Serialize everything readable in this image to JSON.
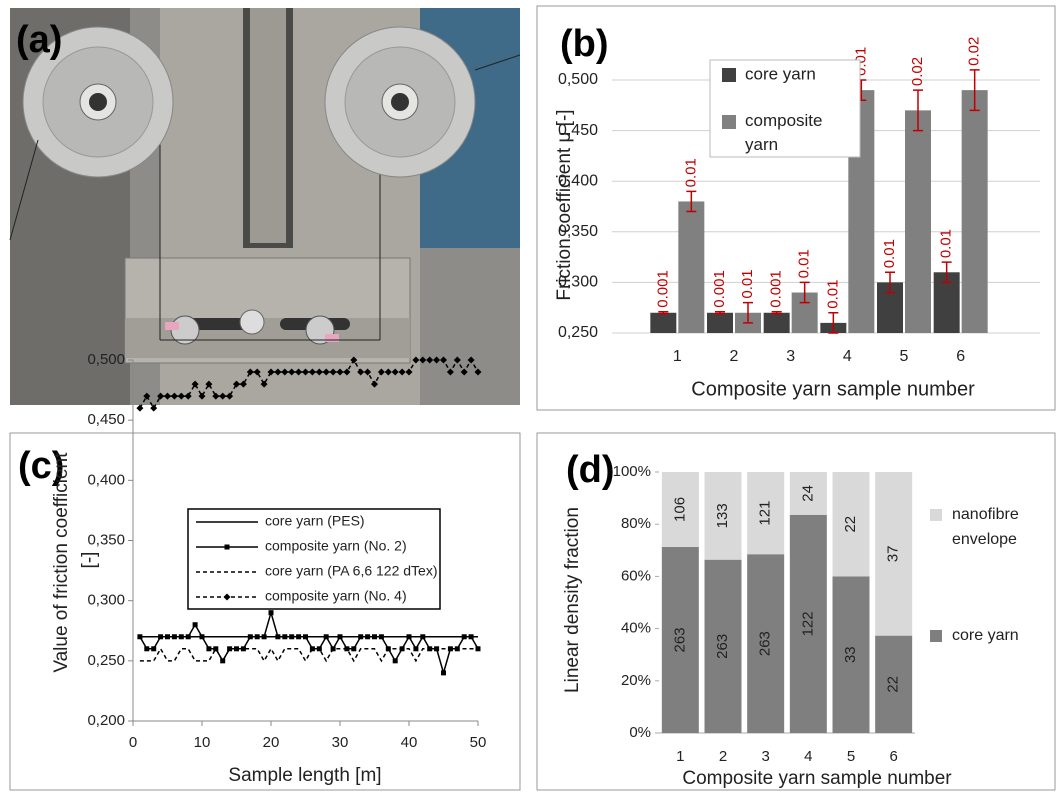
{
  "chart_data": [
    {
      "type": "image",
      "panel_label": "(a)"
    },
    {
      "type": "bar",
      "panel_label": "(b)",
      "y_label": "Friction coefficient μ [-]",
      "x_label": "Composite yarn sample number",
      "categories": [
        "1",
        "2",
        "3",
        "4",
        "5",
        "6"
      ],
      "series": [
        {
          "name": "core yarn",
          "color": "#404040",
          "values": [
            0.27,
            0.27,
            0.27,
            0.26,
            0.3,
            0.31
          ],
          "errors": [
            0.001,
            0.001,
            0.001,
            0.01,
            0.01,
            0.01
          ]
        },
        {
          "name": "composite yarn",
          "color": "#808080",
          "values": [
            0.38,
            0.27,
            0.29,
            0.49,
            0.47,
            0.49
          ],
          "errors": [
            0.01,
            0.01,
            0.01,
            0.01,
            0.02,
            0.02
          ]
        }
      ],
      "error_color": "#c00000",
      "ylim": [
        0.25,
        0.5
      ],
      "yticks": [
        {
          "value": 0.25,
          "label": "0,250"
        },
        {
          "value": 0.3,
          "label": "0,300"
        },
        {
          "value": 0.35,
          "label": "0,350"
        },
        {
          "value": 0.4,
          "label": "0,400"
        },
        {
          "value": 0.45,
          "label": "0,450"
        },
        {
          "value": 0.5,
          "label": "0,500"
        }
      ],
      "grid": true
    },
    {
      "type": "line",
      "panel_label": "(c)",
      "y_label": "Value of friction coefficient [-]",
      "x_label": "Sample length [m]",
      "x": [
        1,
        2,
        3,
        4,
        5,
        6,
        7,
        8,
        9,
        10,
        11,
        12,
        13,
        14,
        15,
        16,
        17,
        18,
        19,
        20,
        21,
        22,
        23,
        24,
        25,
        26,
        27,
        28,
        29,
        30,
        31,
        32,
        33,
        34,
        35,
        36,
        37,
        38,
        39,
        40,
        41,
        42,
        43,
        44,
        45,
        46,
        47,
        48,
        49,
        50
      ],
      "series": [
        {
          "name": "core yarn (PES)",
          "color": "#000000",
          "dash": false,
          "marker": null,
          "values": [
            0.27,
            0.27,
            0.27,
            0.27,
            0.27,
            0.27,
            0.27,
            0.27,
            0.27,
            0.27,
            0.27,
            0.27,
            0.27,
            0.27,
            0.27,
            0.27,
            0.27,
            0.27,
            0.27,
            0.27,
            0.27,
            0.27,
            0.27,
            0.27,
            0.27,
            0.27,
            0.27,
            0.27,
            0.27,
            0.27,
            0.27,
            0.27,
            0.27,
            0.27,
            0.27,
            0.27,
            0.27,
            0.27,
            0.27,
            0.27,
            0.27,
            0.27,
            0.27,
            0.27,
            0.27,
            0.27,
            0.27,
            0.27,
            0.27,
            0.27
          ]
        },
        {
          "name": "composite yarn (No. 2)",
          "color": "#000000",
          "dash": false,
          "marker": "square",
          "values": [
            0.27,
            0.26,
            0.26,
            0.27,
            0.27,
            0.27,
            0.27,
            0.27,
            0.28,
            0.27,
            0.26,
            0.26,
            0.25,
            0.26,
            0.26,
            0.26,
            0.27,
            0.27,
            0.27,
            0.29,
            0.27,
            0.27,
            0.27,
            0.27,
            0.27,
            0.26,
            0.26,
            0.27,
            0.26,
            0.27,
            0.26,
            0.26,
            0.27,
            0.27,
            0.27,
            0.27,
            0.26,
            0.25,
            0.26,
            0.27,
            0.26,
            0.27,
            0.26,
            0.26,
            0.24,
            0.26,
            0.26,
            0.27,
            0.27,
            0.26
          ]
        },
        {
          "name": "core yarn (PA 6,6 122 dTex)",
          "color": "#000000",
          "dash": true,
          "marker": null,
          "values": [
            0.25,
            0.25,
            0.25,
            0.26,
            0.25,
            0.25,
            0.26,
            0.26,
            0.25,
            0.25,
            0.25,
            0.26,
            0.25,
            0.26,
            0.26,
            0.26,
            0.26,
            0.26,
            0.25,
            0.26,
            0.25,
            0.26,
            0.26,
            0.26,
            0.25,
            0.26,
            0.26,
            0.25,
            0.26,
            0.26,
            0.26,
            0.25,
            0.26,
            0.26,
            0.26,
            0.25,
            0.26,
            0.26,
            0.26,
            0.26,
            0.25,
            0.26,
            0.26,
            0.26,
            0.26,
            0.26,
            0.26,
            0.26,
            0.26,
            0.26
          ]
        },
        {
          "name": "composite yarn (No. 4)",
          "color": "#000000",
          "dash": true,
          "marker": "diamond",
          "values": [
            0.46,
            0.47,
            0.46,
            0.47,
            0.47,
            0.47,
            0.47,
            0.47,
            0.48,
            0.47,
            0.48,
            0.47,
            0.47,
            0.47,
            0.48,
            0.48,
            0.49,
            0.49,
            0.48,
            0.49,
            0.49,
            0.49,
            0.49,
            0.49,
            0.49,
            0.49,
            0.49,
            0.49,
            0.49,
            0.49,
            0.49,
            0.5,
            0.49,
            0.49,
            0.48,
            0.49,
            0.49,
            0.49,
            0.49,
            0.49,
            0.5,
            0.5,
            0.5,
            0.5,
            0.5,
            0.49,
            0.5,
            0.49,
            0.5,
            0.49
          ]
        }
      ],
      "xlim": [
        0,
        50
      ],
      "xticks": [
        0,
        10,
        20,
        30,
        40,
        50
      ],
      "ylim": [
        0.2,
        0.5
      ],
      "yticks": [
        {
          "value": 0.2,
          "label": "0,200"
        },
        {
          "value": 0.25,
          "label": "0,250"
        },
        {
          "value": 0.3,
          "label": "0,300"
        },
        {
          "value": 0.35,
          "label": "0,350"
        },
        {
          "value": 0.4,
          "label": "0,400"
        },
        {
          "value": 0.45,
          "label": "0,450"
        },
        {
          "value": 0.5,
          "label": "0,500"
        }
      ],
      "grid": false
    },
    {
      "type": "stacked_bar",
      "panel_label": "(d)",
      "y_label": "Linear density fraction",
      "x_label": "Composite yarn sample number",
      "categories": [
        "1",
        "2",
        "3",
        "4",
        "5",
        "6"
      ],
      "series": [
        {
          "name": "core yarn",
          "color": "#7f7f7f",
          "values": [
            71.3,
            66.4,
            68.5,
            83.6,
            60.0,
            37.3
          ],
          "linear_density": [
            263,
            263,
            263,
            122,
            33,
            22
          ]
        },
        {
          "name": "nanofibre envelope",
          "color": "#d9d9d9",
          "values": [
            28.7,
            33.6,
            31.5,
            16.4,
            40.0,
            62.7
          ],
          "linear_density": [
            106,
            133,
            121,
            24,
            22,
            37
          ]
        }
      ],
      "ylim": [
        0,
        100
      ],
      "yticks": [
        {
          "value": 0,
          "label": "0%"
        },
        {
          "value": 20,
          "label": "20%"
        },
        {
          "value": 40,
          "label": "40%"
        },
        {
          "value": 60,
          "label": "60%"
        },
        {
          "value": 80,
          "label": "80%"
        },
        {
          "value": 100,
          "label": "100%"
        }
      ],
      "grid": false
    }
  ]
}
